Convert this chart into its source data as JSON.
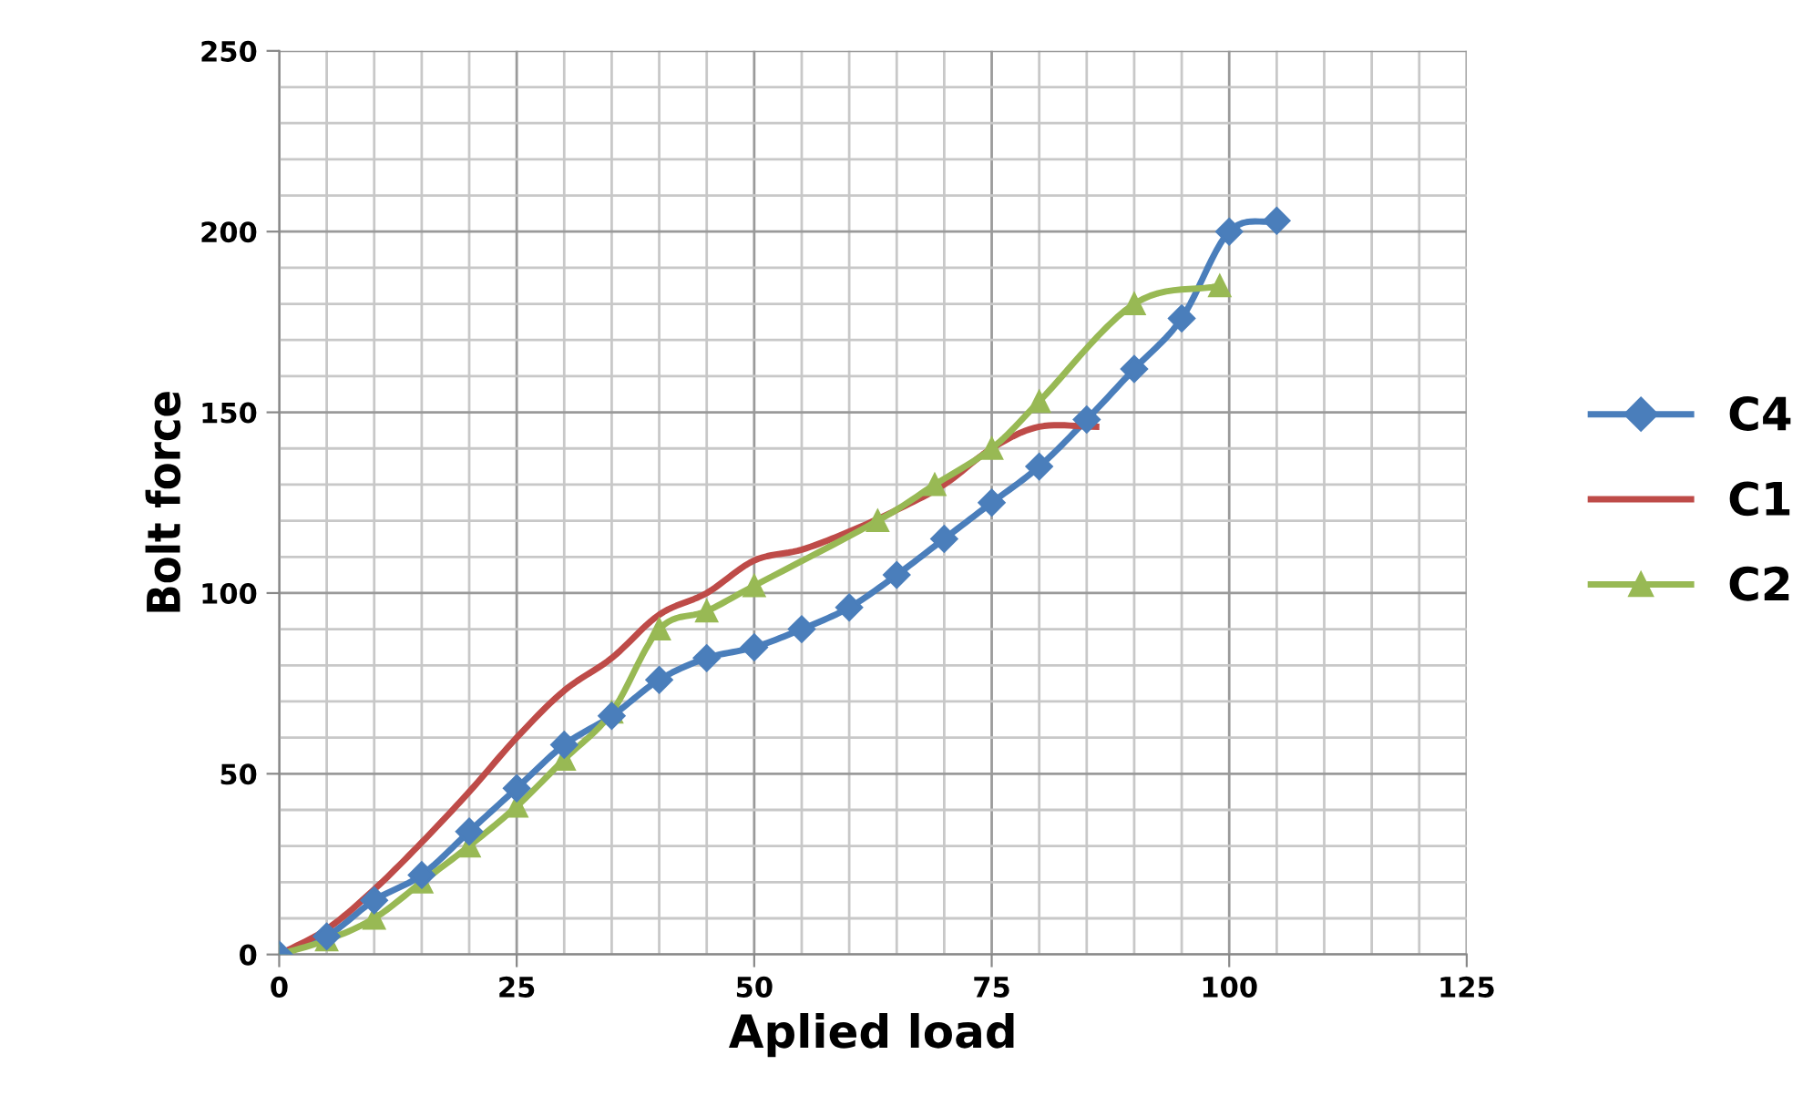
{
  "chart_data": {
    "type": "line",
    "xlabel": "Aplied load",
    "ylabel": "Bolt force",
    "xlim": [
      0,
      125
    ],
    "ylim": [
      0,
      250
    ],
    "xticks": [
      0,
      25,
      50,
      75,
      100,
      125
    ],
    "yticks": [
      0,
      50,
      100,
      150,
      200,
      250
    ],
    "grid": true,
    "legend": "right",
    "line_style": "solid",
    "series": [
      {
        "name": "C4",
        "color": "#4a7ebb",
        "marker": "diamond",
        "x": [
          0,
          5,
          10,
          15,
          20,
          25,
          30,
          35,
          40,
          45,
          50,
          55,
          60,
          65,
          70,
          75,
          80,
          85,
          90,
          95,
          100,
          105
        ],
        "values": [
          0,
          5,
          15,
          22,
          34,
          46,
          58,
          66,
          76,
          82,
          85,
          90,
          96,
          105,
          115,
          125,
          135,
          148,
          162,
          176,
          200,
          203
        ]
      },
      {
        "name": "C1",
        "color": "#be4b48",
        "marker": "none",
        "x": [
          0,
          5,
          10,
          15,
          20,
          25,
          30,
          35,
          40,
          45,
          50,
          55,
          60,
          65,
          70,
          75,
          80,
          86
        ],
        "values": [
          0,
          7,
          18,
          31,
          45,
          60,
          73,
          82,
          94,
          100,
          109,
          112,
          117,
          123,
          130,
          140,
          146,
          146
        ]
      },
      {
        "name": "C2",
        "color": "#98b954",
        "marker": "triangle",
        "x": [
          0,
          5,
          10,
          15,
          20,
          25,
          30,
          35,
          40,
          45,
          50,
          63,
          69,
          75,
          80,
          90,
          99
        ],
        "values": [
          0,
          4,
          10,
          20,
          30,
          41,
          54,
          67,
          90,
          95,
          102,
          120,
          130,
          140,
          153,
          180,
          185
        ]
      }
    ]
  }
}
